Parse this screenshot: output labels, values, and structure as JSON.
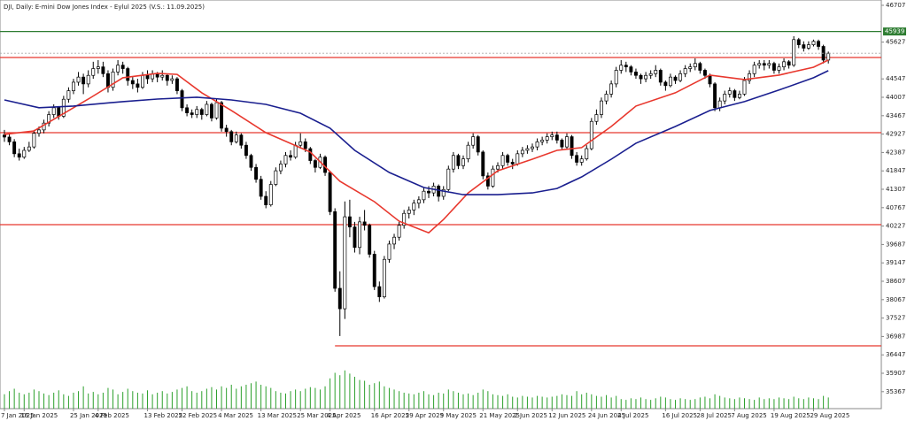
{
  "chart_data": {
    "type": "candlestick",
    "title": "DJI, Daily: E-mini Dow Jones Index - Eylul 2025 (V.S.: 11.09.2025)",
    "ylim": [
      34869,
      46863
    ],
    "yticks": [
      46707,
      45627,
      44547,
      44007,
      43467,
      42927,
      42387,
      41847,
      41307,
      40767,
      40227,
      39687,
      39147,
      38607,
      38067,
      37527,
      36987,
      36447,
      35907,
      35367
    ],
    "bull_color": "#ffffff",
    "bear_color": "#000000",
    "volume_color": "#2ca02c",
    "categories": [
      "7 Jan 2025",
      null,
      null,
      null,
      "16 Jan 2025",
      null,
      null,
      null,
      null,
      null,
      null,
      null,
      null,
      null,
      "25 Jan 2025",
      null,
      null,
      null,
      null,
      "4 Feb 2025",
      null,
      null,
      null,
      null,
      null,
      null,
      null,
      null,
      null,
      "13 Feb 2025",
      null,
      null,
      null,
      null,
      null,
      null,
      "22 Feb 2025",
      null,
      null,
      null,
      null,
      null,
      null,
      null,
      "4 Mar 2025",
      null,
      null,
      null,
      null,
      null,
      null,
      null,
      "13 Mar 2025",
      null,
      null,
      null,
      null,
      null,
      null,
      null,
      "25 Mar 2025",
      null,
      null,
      null,
      null,
      null,
      "4 Apr 2025",
      null,
      null,
      null,
      null,
      null,
      null,
      null,
      null,
      "16 Apr 2025",
      null,
      null,
      null,
      null,
      null,
      null,
      "29 Apr 2025",
      null,
      null,
      null,
      null,
      null,
      null,
      "9 May 2025",
      null,
      null,
      null,
      null,
      null,
      null,
      null,
      "21 May 2025",
      null,
      null,
      null,
      null,
      null,
      null,
      "2 Jun 2025",
      null,
      null,
      null,
      null,
      null,
      null,
      "12 Jun 2025",
      null,
      null,
      null,
      null,
      null,
      null,
      null,
      "24 Jun 2025",
      null,
      null,
      null,
      null,
      null,
      "4 Jul 2025",
      null,
      null,
      null,
      null,
      null,
      null,
      null,
      null,
      "16 Jul 2025",
      null,
      null,
      null,
      null,
      null,
      null,
      "28 Jul 2025",
      null,
      null,
      null,
      null,
      null,
      null,
      "7 Aug 2025",
      null,
      null,
      null,
      null,
      null,
      null,
      null,
      "19 Aug 2025",
      null,
      null,
      null,
      null,
      null,
      null,
      null,
      "29 Aug 2025",
      null,
      null,
      null
    ],
    "candles": [
      [
        42900,
        43050,
        42700,
        42840
      ],
      [
        42840,
        42950,
        42600,
        42700
      ],
      [
        42700,
        42780,
        42250,
        42350
      ],
      [
        42350,
        42500,
        42150,
        42250
      ],
      [
        42250,
        42550,
        42200,
        42450
      ],
      [
        42450,
        42700,
        42400,
        42550
      ],
      [
        42550,
        43050,
        42500,
        42950
      ],
      [
        42950,
        43150,
        42850,
        43050
      ],
      [
        43050,
        43350,
        42950,
        43250
      ],
      [
        43250,
        43600,
        43150,
        43500
      ],
      [
        43500,
        43800,
        43400,
        43700
      ],
      [
        43700,
        43750,
        43350,
        43450
      ],
      [
        43450,
        44050,
        43400,
        43950
      ],
      [
        43950,
        44300,
        43850,
        44200
      ],
      [
        44200,
        44550,
        44100,
        44450
      ],
      [
        44450,
        44750,
        44350,
        44600
      ],
      [
        44600,
        44700,
        44100,
        44400
      ],
      [
        44400,
        44800,
        44300,
        44650
      ],
      [
        44650,
        45050,
        44550,
        44850
      ],
      [
        44850,
        45100,
        44700,
        44900
      ],
      [
        44900,
        45050,
        44600,
        44700
      ],
      [
        44700,
        44800,
        44150,
        44300
      ],
      [
        44300,
        44850,
        44200,
        44750
      ],
      [
        44750,
        45100,
        44650,
        44950
      ],
      [
        44950,
        45050,
        44700,
        44850
      ],
      [
        44850,
        44900,
        44350,
        44500
      ],
      [
        44500,
        44600,
        44250,
        44400
      ],
      [
        44400,
        44550,
        44150,
        44300
      ],
      [
        44300,
        44750,
        44250,
        44650
      ],
      [
        44650,
        44800,
        44400,
        44550
      ],
      [
        44550,
        44800,
        44450,
        44700
      ],
      [
        44700,
        44750,
        44450,
        44600
      ],
      [
        44600,
        44800,
        44500,
        44650
      ],
      [
        44650,
        44700,
        44350,
        44500
      ],
      [
        44500,
        44650,
        44400,
        44550
      ],
      [
        44550,
        44600,
        44100,
        44200
      ],
      [
        44200,
        44250,
        43600,
        43700
      ],
      [
        43700,
        43800,
        43450,
        43550
      ],
      [
        43550,
        43650,
        43400,
        43500
      ],
      [
        43500,
        43750,
        43400,
        43650
      ],
      [
        43650,
        43700,
        43350,
        43500
      ],
      [
        43500,
        43900,
        43450,
        43800
      ],
      [
        43800,
        43850,
        43300,
        43400
      ],
      [
        43400,
        43950,
        43350,
        43850
      ],
      [
        43850,
        43900,
        43000,
        43100
      ],
      [
        43100,
        43200,
        42850,
        43000
      ],
      [
        43000,
        43050,
        42600,
        42700
      ],
      [
        42700,
        43000,
        42650,
        42900
      ],
      [
        42900,
        42950,
        42500,
        42600
      ],
      [
        42600,
        42700,
        42200,
        42300
      ],
      [
        42300,
        42350,
        41850,
        41950
      ],
      [
        41950,
        42050,
        41500,
        41600
      ],
      [
        41600,
        41700,
        41000,
        41100
      ],
      [
        41100,
        41250,
        40750,
        40850
      ],
      [
        40850,
        41550,
        40800,
        41450
      ],
      [
        41450,
        41950,
        41400,
        41850
      ],
      [
        41850,
        42150,
        41750,
        42050
      ],
      [
        42050,
        42400,
        41950,
        42300
      ],
      [
        42300,
        42450,
        42150,
        42250
      ],
      [
        42250,
        42700,
        42200,
        42600
      ],
      [
        42600,
        42950,
        42500,
        42700
      ],
      [
        42700,
        42800,
        42400,
        42500
      ],
      [
        42500,
        42550,
        42050,
        42150
      ],
      [
        42150,
        42200,
        41800,
        41950
      ],
      [
        41950,
        42350,
        41900,
        42250
      ],
      [
        42250,
        42300,
        41700,
        41800
      ],
      [
        41800,
        41850,
        40550,
        40650
      ],
      [
        40650,
        40750,
        38300,
        38400
      ],
      [
        38400,
        38900,
        37000,
        37800
      ],
      [
        37800,
        40950,
        37500,
        40500
      ],
      [
        40500,
        41000,
        39900,
        40200
      ],
      [
        40200,
        40350,
        39450,
        39600
      ],
      [
        39600,
        40500,
        39400,
        40350
      ],
      [
        40350,
        40700,
        40100,
        40250
      ],
      [
        40250,
        40300,
        39300,
        39400
      ],
      [
        39400,
        39500,
        38350,
        38450
      ],
      [
        38450,
        38600,
        38000,
        38150
      ],
      [
        38150,
        39350,
        38100,
        39250
      ],
      [
        39250,
        39800,
        39150,
        39700
      ],
      [
        39700,
        40000,
        39550,
        39900
      ],
      [
        39900,
        40350,
        39800,
        40250
      ],
      [
        40250,
        40700,
        40150,
        40600
      ],
      [
        40600,
        40800,
        40450,
        40700
      ],
      [
        40700,
        41000,
        40550,
        40900
      ],
      [
        40900,
        41100,
        40750,
        41000
      ],
      [
        41000,
        41350,
        40900,
        41250
      ],
      [
        41250,
        41400,
        41050,
        41200
      ],
      [
        41200,
        41500,
        41100,
        41400
      ],
      [
        41400,
        41450,
        40950,
        41100
      ],
      [
        41100,
        41400,
        41000,
        41300
      ],
      [
        41300,
        42000,
        41250,
        41900
      ],
      [
        41900,
        42400,
        41800,
        42300
      ],
      [
        42300,
        42350,
        41900,
        42000
      ],
      [
        42000,
        42300,
        41900,
        42200
      ],
      [
        42200,
        42700,
        42100,
        42600
      ],
      [
        42600,
        42950,
        42500,
        42850
      ],
      [
        42850,
        42900,
        42300,
        42400
      ],
      [
        42400,
        42450,
        41600,
        41700
      ],
      [
        41700,
        41800,
        41300,
        41400
      ],
      [
        41400,
        42000,
        41350,
        41900
      ],
      [
        41900,
        42100,
        41800,
        42000
      ],
      [
        42000,
        42400,
        41900,
        42300
      ],
      [
        42300,
        42350,
        42000,
        42100
      ],
      [
        42100,
        42200,
        41900,
        42050
      ],
      [
        42050,
        42450,
        42000,
        42350
      ],
      [
        42350,
        42550,
        42250,
        42450
      ],
      [
        42450,
        42600,
        42350,
        42500
      ],
      [
        42500,
        42650,
        42400,
        42550
      ],
      [
        42550,
        42800,
        42450,
        42700
      ],
      [
        42700,
        42850,
        42600,
        42750
      ],
      [
        42750,
        42950,
        42650,
        42850
      ],
      [
        42850,
        43000,
        42750,
        42900
      ],
      [
        42900,
        43000,
        42650,
        42750
      ],
      [
        42750,
        42800,
        42450,
        42550
      ],
      [
        42550,
        42950,
        42500,
        42850
      ],
      [
        42850,
        42900,
        42200,
        42300
      ],
      [
        42300,
        42400,
        42000,
        42100
      ],
      [
        42100,
        42300,
        42000,
        42200
      ],
      [
        42200,
        42600,
        42150,
        42500
      ],
      [
        42500,
        43400,
        42450,
        43300
      ],
      [
        43300,
        43650,
        43200,
        43500
      ],
      [
        43500,
        44000,
        43400,
        43900
      ],
      [
        43900,
        44200,
        43800,
        44100
      ],
      [
        44100,
        44500,
        44000,
        44400
      ],
      [
        44400,
        44900,
        44300,
        44800
      ],
      [
        44800,
        45100,
        44700,
        44950
      ],
      [
        44950,
        45050,
        44750,
        44900
      ],
      [
        44900,
        44950,
        44650,
        44750
      ],
      [
        44750,
        44850,
        44550,
        44650
      ],
      [
        44650,
        44700,
        44400,
        44550
      ],
      [
        44550,
        44750,
        44450,
        44650
      ],
      [
        44650,
        44800,
        44550,
        44700
      ],
      [
        44700,
        44950,
        44600,
        44800
      ],
      [
        44800,
        44850,
        44350,
        44450
      ],
      [
        44450,
        44500,
        44200,
        44350
      ],
      [
        44350,
        44700,
        44300,
        44600
      ],
      [
        44600,
        44650,
        44400,
        44500
      ],
      [
        44500,
        44800,
        44450,
        44700
      ],
      [
        44700,
        44950,
        44600,
        44850
      ],
      [
        44850,
        45000,
        44750,
        44900
      ],
      [
        44900,
        45150,
        44800,
        45000
      ],
      [
        45000,
        45050,
        44700,
        44800
      ],
      [
        44800,
        44850,
        44550,
        44650
      ],
      [
        44650,
        44700,
        44300,
        44400
      ],
      [
        44400,
        44450,
        43600,
        43700
      ],
      [
        43700,
        44000,
        43600,
        43900
      ],
      [
        43900,
        44200,
        43800,
        44100
      ],
      [
        44100,
        44300,
        44000,
        44200
      ],
      [
        44200,
        44250,
        43900,
        44000
      ],
      [
        44000,
        44200,
        43950,
        44100
      ],
      [
        44100,
        44600,
        44050,
        44500
      ],
      [
        44500,
        44800,
        44400,
        44700
      ],
      [
        44700,
        45050,
        44600,
        44950
      ],
      [
        44950,
        45100,
        44850,
        45000
      ],
      [
        45000,
        45100,
        44800,
        44950
      ],
      [
        44950,
        45100,
        44850,
        45000
      ],
      [
        45000,
        45050,
        44700,
        44800
      ],
      [
        44800,
        45000,
        44700,
        44900
      ],
      [
        44900,
        45150,
        44800,
        45050
      ],
      [
        45050,
        45100,
        44850,
        44950
      ],
      [
        44950,
        45800,
        44900,
        45700
      ],
      [
        45700,
        45750,
        45450,
        45550
      ],
      [
        45550,
        45650,
        45350,
        45450
      ],
      [
        45450,
        45650,
        45400,
        45550
      ],
      [
        45550,
        45700,
        45500,
        45650
      ],
      [
        45650,
        45700,
        45400,
        45500
      ],
      [
        45500,
        45550,
        45000,
        45100
      ],
      [
        45100,
        45350,
        45000,
        45300
      ]
    ],
    "volumes": [
      18,
      22,
      25,
      20,
      18,
      20,
      24,
      22,
      19,
      17,
      20,
      23,
      18,
      16,
      20,
      22,
      28,
      19,
      21,
      18,
      20,
      26,
      24,
      18,
      21,
      25,
      22,
      20,
      19,
      23,
      18,
      20,
      22,
      19,
      21,
      24,
      26,
      28,
      22,
      20,
      22,
      25,
      27,
      24,
      28,
      26,
      30,
      25,
      28,
      30,
      32,
      34,
      30,
      28,
      26,
      22,
      20,
      19,
      22,
      24,
      22,
      25,
      27,
      26,
      24,
      28,
      38,
      45,
      42,
      48,
      44,
      40,
      36,
      35,
      30,
      32,
      34,
      28,
      26,
      24,
      22,
      20,
      19,
      18,
      20,
      22,
      18,
      17,
      20,
      19,
      24,
      22,
      20,
      18,
      19,
      17,
      20,
      24,
      22,
      18,
      17,
      16,
      18,
      15,
      14,
      16,
      15,
      14,
      16,
      15,
      14,
      15,
      16,
      18,
      17,
      16,
      22,
      18,
      20,
      18,
      16,
      15,
      17,
      14,
      16,
      12,
      11,
      13,
      12,
      14,
      12,
      11,
      13,
      15,
      14,
      12,
      11,
      13,
      12,
      11,
      12,
      14,
      15,
      13,
      18,
      16,
      14,
      13,
      12,
      14,
      13,
      12,
      11,
      14,
      12,
      13,
      12,
      14,
      13,
      12,
      15,
      13,
      12,
      14,
      13,
      12,
      16,
      14
    ],
    "moving_averages": [
      {
        "color": "#e8382e",
        "x": [
          0,
          6,
          17,
          24,
          31,
          35,
          40,
          46,
          53,
          62,
          68,
          75,
          80,
          86,
          89,
          94,
          100,
          107,
          112,
          117,
          123,
          128,
          136,
          143,
          150,
          157,
          164,
          167
        ],
        "values": [
          42920,
          43020,
          43955,
          44580,
          44710,
          44680,
          44140,
          43620,
          42970,
          42400,
          41540,
          40940,
          40370,
          40030,
          40420,
          41200,
          41850,
          42190,
          42450,
          42530,
          43150,
          43750,
          44140,
          44660,
          44530,
          44660,
          44890,
          45100
        ]
      },
      {
        "color": "#1a1f8f",
        "x": [
          0,
          7,
          14,
          24,
          31,
          39,
          46,
          53,
          60,
          66,
          71,
          78,
          85,
          93,
          100,
          107,
          112,
          117,
          123,
          128,
          136,
          143,
          150,
          157,
          164,
          167
        ],
        "values": [
          43930,
          43700,
          43750,
          43880,
          43955,
          44010,
          43930,
          43800,
          43540,
          43100,
          42450,
          41800,
          41360,
          41150,
          41150,
          41200,
          41330,
          41670,
          42190,
          42660,
          43150,
          43620,
          43880,
          44220,
          44580,
          44790
        ]
      }
    ],
    "levels": [
      {
        "value": 45939,
        "color": "#2e7d32",
        "label": "45939"
      },
      {
        "value": 45175,
        "color": "#e8382e"
      },
      {
        "value": 42969,
        "color": "#e8382e"
      },
      {
        "value": 40269,
        "color": "#e8382e"
      },
      {
        "value": 36712,
        "color": "#e8382e",
        "start": 67
      }
    ]
  }
}
